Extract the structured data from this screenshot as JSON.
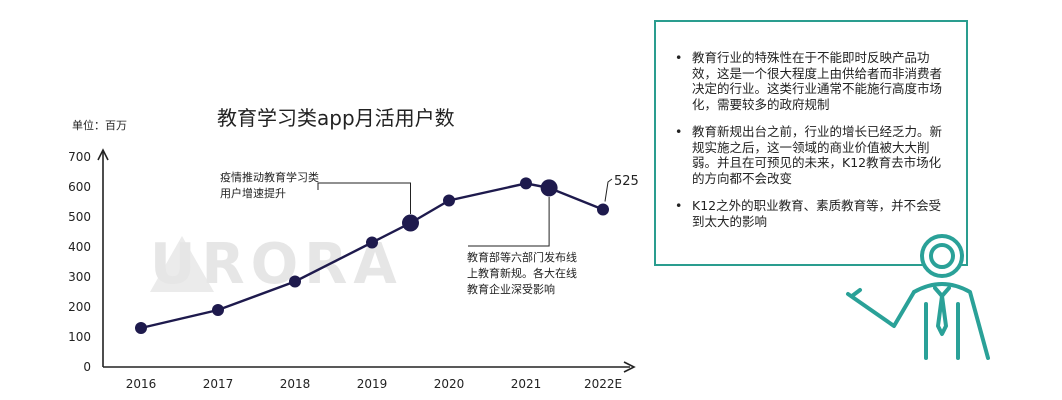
{
  "unit_label": "单位：百万",
  "watermark_text": "URORA",
  "chart_data": {
    "type": "line",
    "title": "教育学习类app月活用户数",
    "ylabel": "单位：百万",
    "ylim": [
      0,
      700
    ],
    "yticks": [
      0,
      100,
      200,
      300,
      400,
      500,
      600,
      700
    ],
    "xticks": [
      "2016",
      "2017",
      "2018",
      "2019",
      "2020",
      "2021",
      "2022E"
    ],
    "grid": false,
    "series": [
      {
        "x": [
          2016.0,
          2017.0,
          2018.0,
          2019.0,
          2019.5,
          2020.0,
          2021.0,
          2021.3,
          2022.0
        ],
        "values": [
          130,
          190,
          285,
          415,
          480,
          555,
          612,
          597,
          525
        ],
        "highlighted_index": [
          4,
          7
        ]
      }
    ],
    "data_labels": [
      {
        "index": 8,
        "text": "525"
      }
    ],
    "annotations": [
      {
        "text": "疫情推动教育学习类用户增速提升",
        "point_index": 4
      },
      {
        "text": "教育部等六部门发布线上教育新规。各大在线教育企业深受影响",
        "point_index": 7
      }
    ],
    "colors": {
      "line": "#1e1a4d",
      "axis": "#222222"
    }
  },
  "panel": {
    "border_color": "#2a9d8f",
    "bullets": [
      "教育行业的特殊性在于不能即时反映产品功效，这是一个很大程度上由供给者而非消费者决定的行业。这类行业通常不能施行高度市场化，需要较多的政府规制",
      "教育新规出台之前，行业的增长已经乏力。新规实施之后，这一领域的商业价值被大大削弱。并且在可预见的未来，K12教育去市场化的方向都不会改变",
      "K12之外的职业教育、素质教育等，并不会受到太大的影响"
    ]
  },
  "figure_icon": "teacher-figure-icon"
}
